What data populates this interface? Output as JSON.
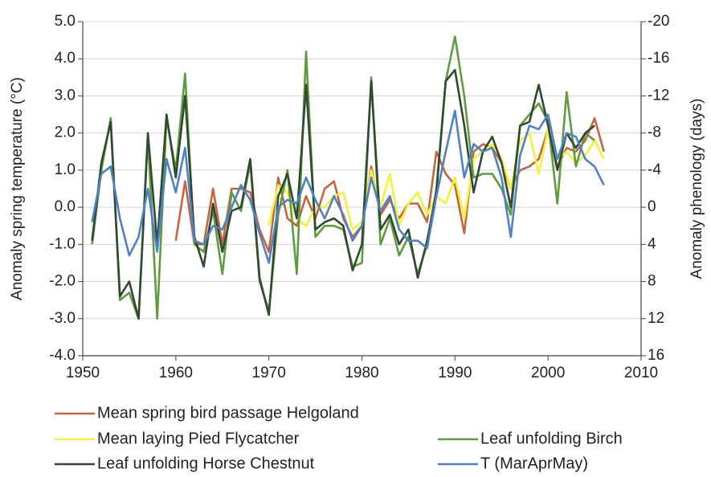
{
  "chart_data": {
    "type": "line",
    "y_label": "Anomaly spring temperature (°C)",
    "y2_label": "Anomaly phenology (days)",
    "x": [
      1951,
      1952,
      1953,
      1954,
      1955,
      1956,
      1957,
      1958,
      1959,
      1960,
      1961,
      1962,
      1963,
      1964,
      1965,
      1966,
      1967,
      1968,
      1969,
      1970,
      1971,
      1972,
      1973,
      1974,
      1975,
      1976,
      1977,
      1978,
      1979,
      1980,
      1981,
      1982,
      1983,
      1984,
      1985,
      1986,
      1987,
      1988,
      1989,
      1990,
      1991,
      1992,
      1993,
      1994,
      1995,
      1996,
      1997,
      1998,
      1999,
      2000,
      2001,
      2002,
      2003,
      2004,
      2005,
      2006
    ],
    "xlim": [
      1950,
      2010
    ],
    "xticks": [
      1950,
      1960,
      1970,
      1980,
      1990,
      2000,
      2010
    ],
    "ylim": [
      -4,
      5
    ],
    "yticks": [
      {
        "value": -4,
        "label": "-4.0"
      },
      {
        "value": -3,
        "label": "-3.0"
      },
      {
        "value": -2,
        "label": "-2.0"
      },
      {
        "value": -1,
        "label": "-1.0"
      },
      {
        "value": 0,
        "label": "0.0"
      },
      {
        "value": 1,
        "label": "1.0"
      },
      {
        "value": 2,
        "label": "2.0"
      },
      {
        "value": 3,
        "label": "3.0"
      },
      {
        "value": 4,
        "label": "4.0"
      },
      {
        "value": 5,
        "label": "5.0"
      }
    ],
    "y2lim": [
      16,
      -20
    ],
    "y2ticks": [
      16,
      12,
      8,
      4,
      0,
      -4,
      -8,
      -12,
      -16,
      -20
    ],
    "grid": true,
    "series": [
      {
        "name": "Mean spring bird passage Helgoland",
        "color": "#c8643c",
        "axis": "y2",
        "values": [
          null,
          null,
          null,
          null,
          null,
          null,
          null,
          null,
          null,
          3.6,
          -2.8,
          4,
          4,
          -2,
          4,
          -2,
          -2,
          -1.6,
          2.4,
          4.8,
          -3.2,
          1.2,
          2,
          -1.2,
          1.2,
          -2,
          -2.8,
          1.2,
          3.2,
          2,
          -4.4,
          0.8,
          -0.8,
          1.2,
          -0.4,
          -0.4,
          1.6,
          -6,
          -3.6,
          -2.4,
          2.8,
          -6,
          -6.8,
          -6.4,
          -4.8,
          -2,
          -4,
          -4.4,
          -5.2,
          -8.4,
          -4.4,
          -6.4,
          -6,
          -7.2,
          -9.6,
          -6
        ]
      },
      {
        "name": "Mean laying Pied Flycatcher",
        "color": "#f2f23a",
        "axis": "y2",
        "values": [
          null,
          null,
          null,
          null,
          null,
          null,
          null,
          null,
          null,
          null,
          null,
          null,
          null,
          null,
          null,
          null,
          null,
          null,
          null,
          2,
          -2.4,
          -1.6,
          1.2,
          2,
          0,
          0,
          -1.2,
          -1.6,
          2.4,
          1.6,
          -4,
          0,
          -3.6,
          2,
          -0.4,
          -1.6,
          0.8,
          -1.2,
          -0.4,
          -3.2,
          1.2,
          -5.2,
          -6,
          -6.8,
          -5.2,
          -2,
          -7.2,
          -8,
          -3.6,
          -8.4,
          -5.2,
          -6,
          -4.8,
          -5.6,
          -7.2,
          -5.2
        ]
      },
      {
        "name": "Leaf unfolding Birch",
        "color": "#5e9c3e",
        "axis": "y2",
        "values": [
          4,
          -4,
          -9.6,
          10,
          9.2,
          12,
          -7.6,
          12,
          -9.6,
          -4,
          -14.4,
          4,
          4.8,
          0.4,
          7.2,
          -1.6,
          0.4,
          -4.8,
          8,
          11.2,
          0.8,
          -4,
          7.2,
          -16.8,
          3.2,
          2,
          2,
          2.4,
          6.4,
          6,
          -14,
          4,
          1.2,
          5.2,
          3.2,
          7.2,
          4,
          -2,
          -13.6,
          -18.4,
          -12,
          -3.2,
          -3.6,
          -3.6,
          -2,
          0.8,
          -8.8,
          -10,
          -11.2,
          -9.2,
          -0.4,
          -12.4,
          -4.4,
          -8,
          -7.2,
          null
        ]
      },
      {
        "name": "Leaf unfolding Horse Chestnut",
        "color": "#2f4a30",
        "axis": "y2",
        "values": [
          3.6,
          -4.8,
          -9.2,
          9.6,
          8,
          12,
          -8,
          4,
          -10,
          -3.2,
          -12,
          3.2,
          6.4,
          -0.4,
          4.8,
          0.4,
          0,
          -5.2,
          7.6,
          11.6,
          -1.2,
          -3.6,
          1.2,
          -13.2,
          2.4,
          1.6,
          1.2,
          2,
          6.8,
          4,
          -13.6,
          2.4,
          0.8,
          4,
          2.4,
          7.6,
          3.6,
          -1.6,
          -13.6,
          -14.8,
          -8.8,
          -1.6,
          -6,
          -7.6,
          -4.8,
          0,
          -8.8,
          -9.2,
          -13.2,
          -8.8,
          -4,
          -8,
          -6.4,
          -8,
          -8.8,
          null
        ]
      },
      {
        "name": "T (MarAprMay)",
        "color": "#4f80c8",
        "values": [
          -0.4,
          0.9,
          1.1,
          -0.3,
          -1.3,
          -0.8,
          0.5,
          -1.2,
          1.3,
          0.4,
          1.6,
          -0.9,
          -1.0,
          -0.5,
          -0.6,
          0.0,
          0.6,
          0.2,
          -0.7,
          -1.5,
          0.0,
          0.2,
          0.1,
          0.8,
          0.2,
          -0.3,
          0.3,
          -0.2,
          -0.9,
          -0.5,
          0.8,
          -0.1,
          0.3,
          -0.6,
          -0.9,
          -0.9,
          -1.1,
          0.3,
          1.5,
          2.6,
          0.8,
          1.7,
          1.5,
          1.6,
          0.8,
          -0.8,
          1.4,
          2.2,
          2.1,
          2.5,
          1.3,
          2.0,
          1.9,
          1.3,
          1.1,
          0.6
        ]
      }
    ]
  }
}
